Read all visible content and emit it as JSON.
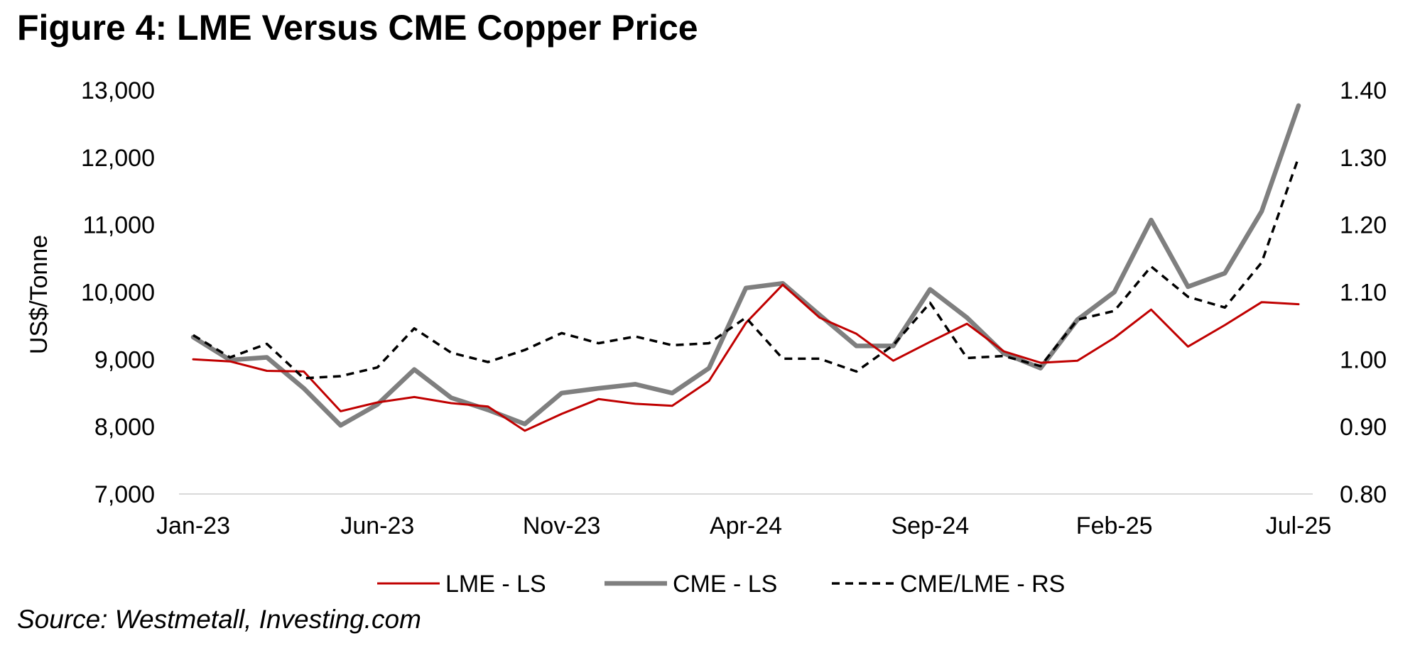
{
  "figure_title": "Figure 4: LME Versus CME Copper Price",
  "source": "Source: Westmetall, Investing.com",
  "chart_data": {
    "type": "line",
    "title": "Figure 4: LME Versus CME Copper Price",
    "xlabel": "",
    "ylabel": "US$/Tonne",
    "y2label": "",
    "x": [
      "Jan-23",
      "Feb-23",
      "Mar-23",
      "Apr-23",
      "May-23",
      "Jun-23",
      "Jul-23",
      "Aug-23",
      "Sep-23",
      "Oct-23",
      "Nov-23",
      "Dec-23",
      "Jan-24",
      "Feb-24",
      "Mar-24",
      "Apr-24",
      "May-24",
      "Jun-24",
      "Jul-24",
      "Aug-24",
      "Sep-24",
      "Oct-24",
      "Nov-24",
      "Dec-24",
      "Jan-25",
      "Feb-25",
      "Mar-25",
      "Apr-25",
      "May-25",
      "Jun-25",
      "Jul-25"
    ],
    "xtick_labels": [
      "Jan-23",
      "Jun-23",
      "Nov-23",
      "Apr-24",
      "Sep-24",
      "Feb-25",
      "Jul-25"
    ],
    "ylim": [
      7000,
      13000
    ],
    "yticks": [
      "7,000",
      "8,000",
      "9,000",
      "10,000",
      "11,000",
      "12,000",
      "13,000"
    ],
    "y2lim": [
      0.8,
      1.4
    ],
    "y2ticks": [
      "0.80",
      "0.90",
      "1.00",
      "1.10",
      "1.20",
      "1.30",
      "1.40"
    ],
    "grid": false,
    "legend_position": "bottom",
    "series": [
      {
        "name": "LME - LS",
        "axis": "left",
        "color": "#c00000",
        "style": "solid",
        "values": [
          9000,
          8970,
          8830,
          8820,
          8230,
          8360,
          8440,
          8350,
          8300,
          7940,
          8190,
          8410,
          8340,
          8310,
          8680,
          9540,
          10110,
          9620,
          9380,
          8980,
          9260,
          9530,
          9120,
          8950,
          8980,
          9320,
          9740,
          9190,
          9510,
          9850,
          9820
        ]
      },
      {
        "name": "CME - LS",
        "axis": "left",
        "color": "#7f7f7f",
        "style": "solid",
        "values": [
          9330,
          8990,
          9030,
          8570,
          8020,
          8330,
          8850,
          8430,
          8250,
          8040,
          8500,
          8570,
          8630,
          8500,
          8870,
          10060,
          10130,
          9660,
          9200,
          9200,
          10040,
          9620,
          9090,
          8870,
          9590,
          10000,
          11070,
          10080,
          10280,
          11200,
          12770
        ]
      },
      {
        "name": "CME/LME - RS",
        "axis": "right",
        "color": "#000000",
        "style": "dashed",
        "values": [
          1.036,
          1.003,
          1.023,
          0.972,
          0.975,
          0.988,
          1.046,
          1.01,
          0.996,
          1.014,
          1.039,
          1.024,
          1.034,
          1.021,
          1.024,
          1.062,
          1.001,
          1.001,
          0.982,
          1.021,
          1.084,
          1.002,
          1.005,
          0.99,
          1.059,
          1.072,
          1.138,
          1.093,
          1.077,
          1.144,
          1.3
        ]
      }
    ]
  }
}
